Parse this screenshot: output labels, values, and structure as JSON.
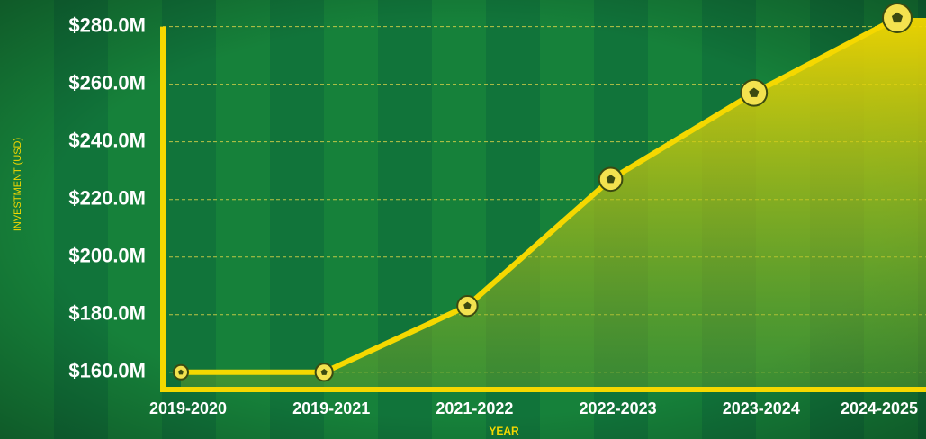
{
  "chart_data": {
    "type": "area",
    "x_label": "YEAR",
    "y_label": "INVESTMENT (USD)",
    "categories": [
      "2019-2020",
      "2019-2021",
      "2021-2022",
      "2022-2023",
      "2023-2024",
      "2024-2025"
    ],
    "series": [
      {
        "name": "Investment",
        "color": "#f5d800",
        "values": [
          160,
          160,
          183,
          227,
          257,
          283
        ]
      }
    ],
    "ylim": [
      154,
      288
    ],
    "yticks": [
      {
        "value": 160,
        "label": "$160.0M"
      },
      {
        "value": 180,
        "label": "$180.0M"
      },
      {
        "value": 200,
        "label": "$200.0M"
      },
      {
        "value": 220,
        "label": "$220.0M"
      },
      {
        "value": 240,
        "label": "$240.0M"
      },
      {
        "value": 260,
        "label": "$260.0M"
      },
      {
        "value": 280,
        "label": "$280.0M"
      }
    ],
    "grid": true
  }
}
